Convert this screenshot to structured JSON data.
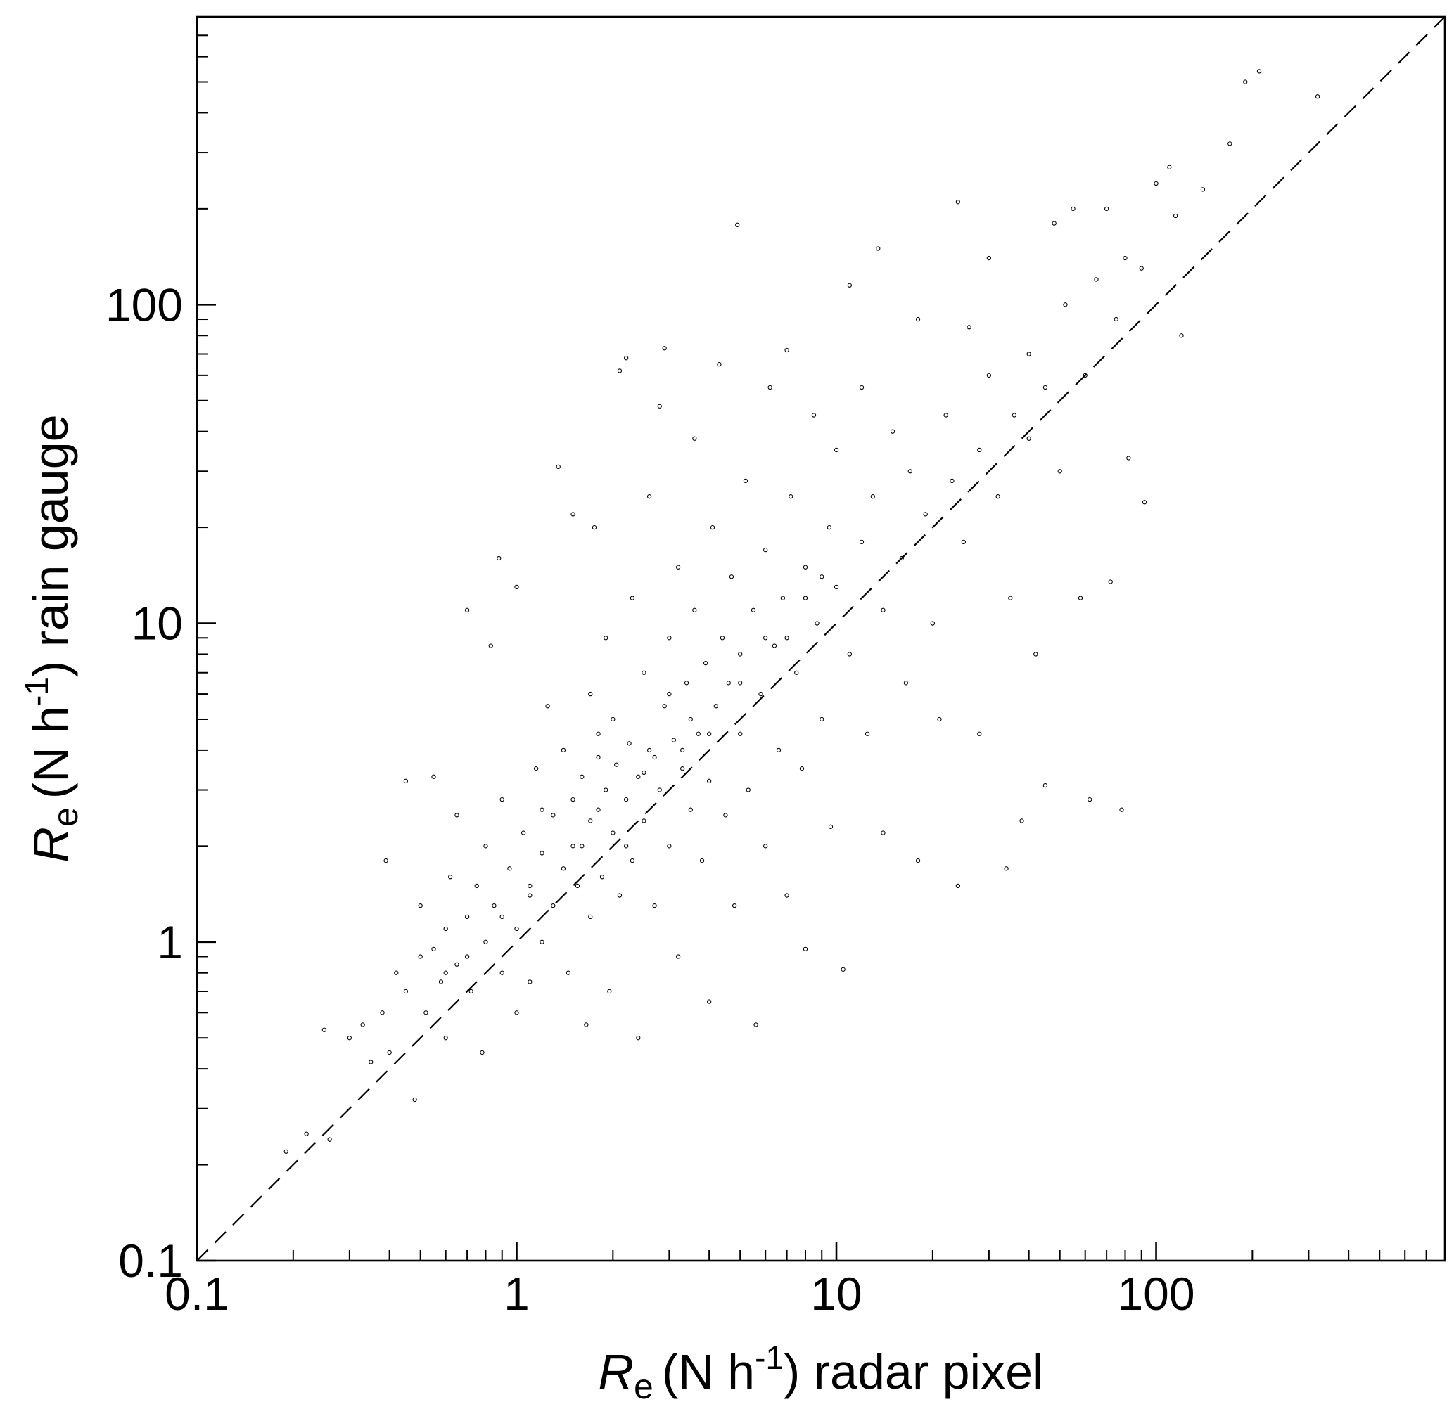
{
  "chart_data": {
    "type": "scatter",
    "x_label": {
      "symbol": "R",
      "subscript": "e",
      "text": "(N h",
      "superscript": "-1",
      "rest": ") radar pixel"
    },
    "y_label": {
      "symbol": "R",
      "subscript": "e",
      "text": "(N h",
      "superscript": "-1",
      "rest": ") rain gauge"
    },
    "log_x": true,
    "log_y": true,
    "xlim": [
      0.1,
      800
    ],
    "ylim": [
      0.1,
      800
    ],
    "xticks": [
      0.1,
      1,
      10,
      100
    ],
    "yticks": [
      0.1,
      1,
      10,
      100
    ],
    "xminorticks": [
      0.2,
      0.3,
      0.4,
      0.5,
      0.6,
      0.7,
      0.8,
      0.9,
      2,
      3,
      4,
      5,
      6,
      7,
      8,
      9,
      20,
      30,
      40,
      50,
      60,
      70,
      80,
      90,
      200,
      300,
      400,
      500,
      600,
      700
    ],
    "yminorticks": [
      0.2,
      0.3,
      0.4,
      0.5,
      0.6,
      0.7,
      0.8,
      0.9,
      2,
      3,
      4,
      5,
      6,
      7,
      8,
      9,
      20,
      30,
      40,
      50,
      60,
      70,
      80,
      90,
      200,
      300,
      400,
      500,
      600,
      700
    ],
    "identity_line": true,
    "color": "#000000",
    "x": [
      0.19,
      0.22,
      0.25,
      0.26,
      0.3,
      0.33,
      0.35,
      0.38,
      0.39,
      0.4,
      0.42,
      0.45,
      0.45,
      0.48,
      0.5,
      0.5,
      0.52,
      0.55,
      0.55,
      0.58,
      0.6,
      0.6,
      0.62,
      0.65,
      0.65,
      0.7,
      0.7,
      0.72,
      0.75,
      0.78,
      0.8,
      0.8,
      0.83,
      0.85,
      0.88,
      0.9,
      0.9,
      0.95,
      1,
      1,
      1,
      1.05,
      1.1,
      1.1,
      1.15,
      1.2,
      1.2,
      1.25,
      1.3,
      1.3,
      1.35,
      1.4,
      1.4,
      1.45,
      1.5,
      1.5,
      1.55,
      1.6,
      1.6,
      1.65,
      1.7,
      1.7,
      1.75,
      1.8,
      1.8,
      1.85,
      1.9,
      1.9,
      1.95,
      2,
      2,
      2.05,
      2.1,
      2.1,
      2.2,
      2.2,
      2.25,
      2.3,
      2.3,
      2.4,
      2.4,
      2.5,
      2.5,
      2.6,
      2.6,
      2.7,
      2.8,
      2.8,
      2.9,
      2.9,
      3,
      3,
      3.1,
      3.2,
      3.2,
      3.3,
      3.4,
      3.5,
      3.6,
      3.6,
      3.7,
      3.8,
      3.9,
      4,
      4,
      4.1,
      4.2,
      4.3,
      4.4,
      4.5,
      4.6,
      4.7,
      4.8,
      4.9,
      5,
      5,
      5.2,
      5.3,
      5.5,
      5.6,
      5.8,
      6,
      6,
      6.2,
      6.4,
      6.6,
      6.8,
      7,
      7,
      7.2,
      7.5,
      7.8,
      8,
      8,
      8.5,
      8.7,
      9,
      9.5,
      9.6,
      10,
      10,
      10.5,
      11,
      11,
      12,
      12,
      12.5,
      13,
      13.5,
      14,
      14,
      15,
      16,
      16.5,
      17,
      18,
      18,
      19,
      20,
      21,
      22,
      23,
      24,
      24,
      25,
      26,
      28,
      28,
      30,
      30,
      32,
      34,
      35,
      36,
      38,
      40,
      40,
      42,
      45,
      45,
      48,
      50,
      52,
      55,
      58,
      60,
      62,
      65,
      70,
      72,
      75,
      78,
      80,
      82,
      90,
      92,
      100,
      110,
      115,
      120,
      140,
      170,
      190,
      210,
      320,
      1.2,
      1.8,
      2.5,
      3,
      3.5,
      4,
      5,
      6,
      7,
      8,
      9,
      2.2,
      2.7,
      3.3,
      1.5,
      1.7,
      0.9,
      1.1,
      0.7,
      0.6
    ],
    "y": [
      0.22,
      0.25,
      0.53,
      0.24,
      0.5,
      0.55,
      0.42,
      0.6,
      1.8,
      0.45,
      0.8,
      0.7,
      3.2,
      0.32,
      0.9,
      1.3,
      0.6,
      0.95,
      3.3,
      0.75,
      1.1,
      0.5,
      1.6,
      0.85,
      2.5,
      11,
      1.2,
      0.7,
      1.5,
      0.45,
      2,
      1,
      8.5,
      1.3,
      16,
      0.8,
      2.8,
      1.7,
      1.1,
      0.6,
      13,
      2.2,
      1.4,
      0.75,
      3.5,
      1.9,
      1,
      5.5,
      2.5,
      1.3,
      31,
      1.7,
      4,
      0.8,
      2.8,
      22,
      1.5,
      3.3,
      2,
      0.55,
      6,
      1.2,
      20,
      2.6,
      4.5,
      1.6,
      3,
      9,
      0.7,
      2.2,
      5,
      3.6,
      1.4,
      62,
      68,
      2.8,
      4.2,
      12,
      1.8,
      3.3,
      0.5,
      7,
      2.4,
      4,
      25,
      1.3,
      3,
      48,
      5.5,
      73,
      2,
      9,
      4.3,
      15,
      0.9,
      3.5,
      6.5,
      2.6,
      38,
      11,
      4.5,
      1.8,
      7.5,
      3.2,
      0.65,
      20,
      5.5,
      65,
      9,
      2.5,
      6.5,
      14,
      1.3,
      178,
      4.5,
      8,
      28,
      3,
      11,
      0.55,
      6,
      17,
      2,
      55,
      8.5,
      4,
      12,
      72,
      1.4,
      25,
      7,
      3.5,
      15,
      0.95,
      45,
      10,
      5,
      20,
      2.3,
      13,
      35,
      0.82,
      8,
      115,
      18,
      55,
      4.5,
      25,
      150,
      11,
      2.2,
      40,
      16,
      6.5,
      30,
      90,
      1.8,
      22,
      10,
      5,
      45,
      28,
      210,
      1.5,
      18,
      85,
      35,
      4.5,
      140,
      60,
      25,
      1.7,
      12,
      45,
      2.4,
      70,
      38,
      8,
      55,
      3.1,
      180,
      30,
      100,
      200,
      12,
      60,
      2.8,
      120,
      200,
      13.5,
      90,
      2.6,
      140,
      33,
      130,
      24,
      240,
      270,
      190,
      80,
      230,
      320,
      500,
      540,
      450,
      2.6,
      3.8,
      3.4,
      6,
      5,
      4.5,
      6.5,
      9,
      9,
      12,
      14,
      2,
      3.8,
      4,
      2,
      2.4,
      1.2,
      1.5,
      0.9,
      0.8
    ]
  }
}
